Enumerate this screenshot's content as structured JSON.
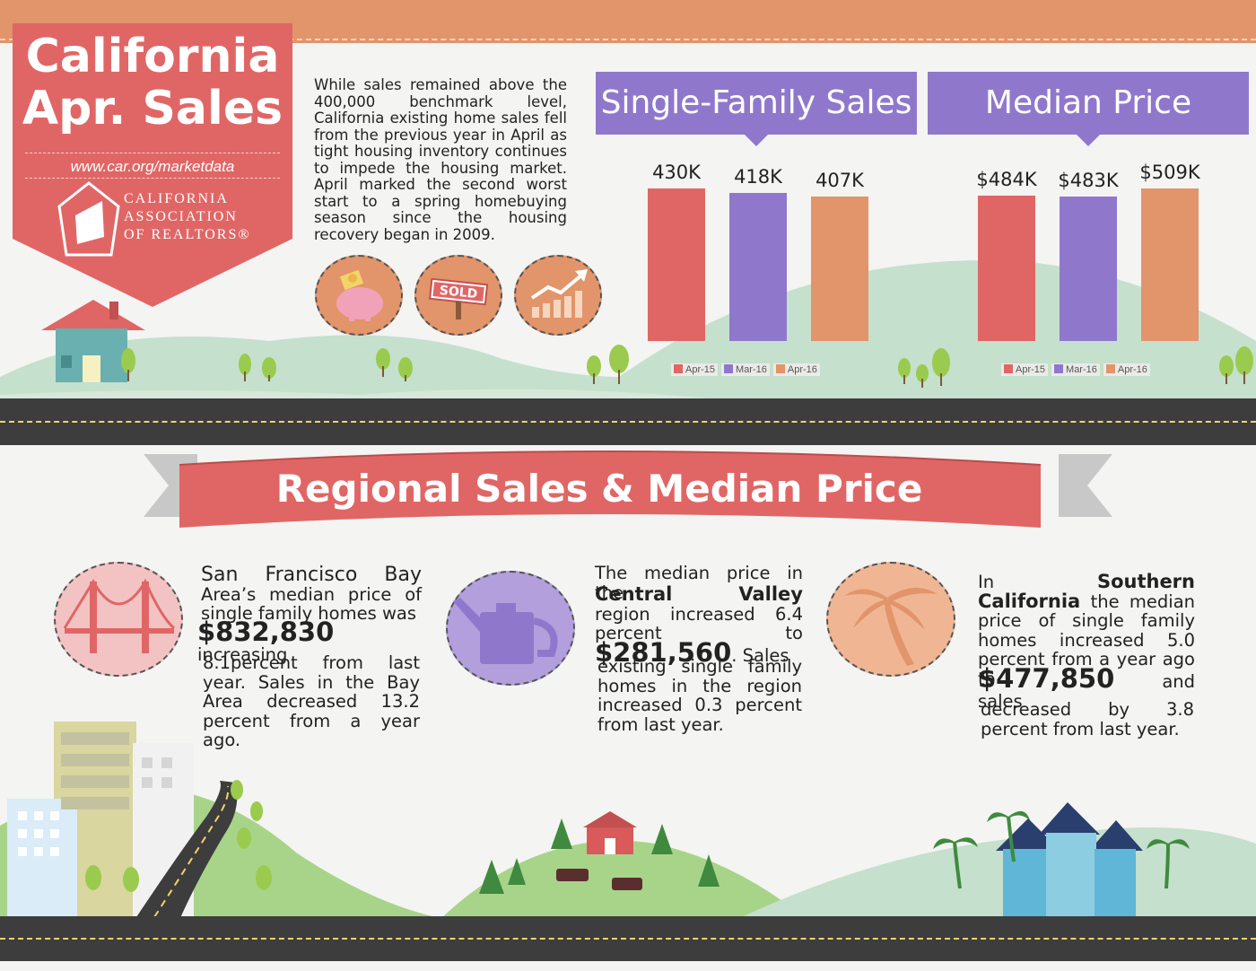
{
  "banner": {
    "title_line1": "California",
    "title_line2": "Apr. Sales",
    "url": "www.car.org/marketdata",
    "logo_line1": "CALIFORNIA",
    "logo_line2": "ASSOCIATION",
    "logo_line3": "OF REALTORS®"
  },
  "intro": "While sales remained above the 400,000 benchmark level, California existing home sales fell from the previous year in April as tight housing inventory continues to impede the housing market. April marked the second worst start to a spring homebuying season since the housing recovery began in 2009.",
  "icons": {
    "sold_sign": "SOLD"
  },
  "chart_data": [
    {
      "type": "bar",
      "title": "Single-Family Sales",
      "categories": [
        "Apr-15",
        "Mar-16",
        "Apr-16"
      ],
      "values": [
        430,
        418,
        407
      ],
      "data_labels": [
        "430K",
        "418K",
        "407K"
      ],
      "colors": [
        "#e06666",
        "#8f78cc",
        "#e2946a"
      ],
      "legend": [
        "Apr-15",
        "Mar-16",
        "Apr-16"
      ],
      "legend_position": "bottom",
      "grid": false
    },
    {
      "type": "bar",
      "title": "Median Price",
      "categories": [
        "Apr-15",
        "Mar-16",
        "Apr-16"
      ],
      "values": [
        484,
        483,
        509
      ],
      "data_labels": [
        "$484K",
        "$483K",
        "$509K"
      ],
      "colors": [
        "#e06666",
        "#8f78cc",
        "#e2946a"
      ],
      "legend": [
        "Apr-15",
        "Mar-16",
        "Apr-16"
      ],
      "legend_position": "bottom",
      "grid": false
    }
  ],
  "colors": {
    "red": "#e06666",
    "purple": "#8f78cc",
    "orange": "#e2946a",
    "road": "#3d3d3d",
    "hill": "#c5e0cc"
  },
  "regional": {
    "title": "Regional Sales & Median Price",
    "sf": {
      "lead": "San Francisco Bay",
      "text1": "Area’s median price of single family homes was",
      "price": "$832,830",
      "text2": "increasing",
      "text3": "8.1percent from last year. Sales in the Bay Area decreased 13.2 percent from a year ago."
    },
    "cv": {
      "text0": "The median price in the",
      "region": "Central Valley",
      "text1": "region increased 6.4 percent to",
      "price": "$281,560",
      "text2": ". Sales",
      "text3": "existing single family homes in the region increased 0.3 percent from last year."
    },
    "sc": {
      "in": "In",
      "region": "Southern California",
      "text1": "the median price of single family homes increased 5.0 percent from a year ago to",
      "price": "$477,850",
      "text2": "and sales",
      "text3": "decreased by 3.8 percent from last year."
    }
  }
}
